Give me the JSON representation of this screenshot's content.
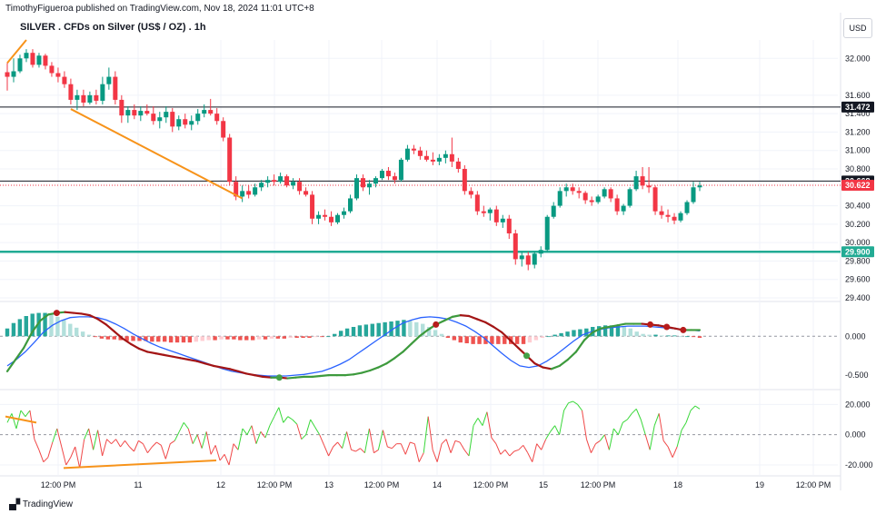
{
  "header": {
    "published": "TimothyFigueroa published on TradingView.com, Nov 18, 2024 11:01 UTC+8",
    "title": "SILVER . CFDs on Silver (US$ / OZ) . 1h",
    "currency": "USD",
    "brand": "TradingView"
  },
  "chart_data": [
    {
      "type": "candlestick",
      "title": "SILVER . CFDs on Silver (US$ / OZ) . 1h",
      "y_ticks": [
        "32.000",
        "31.600",
        "31.400",
        "31.200",
        "31.000",
        "30.800",
        "30.400",
        "30.200",
        "30.000",
        "29.800",
        "29.600",
        "29.400"
      ],
      "ylim": [
        29.4,
        32.2
      ],
      "price_labels": [
        {
          "value": 31.472,
          "text": "31.472",
          "color": "#131722"
        },
        {
          "value": 30.668,
          "text": "30.668",
          "color": "#131722"
        },
        {
          "value": 30.622,
          "text": "30.622",
          "color": "#f23645"
        },
        {
          "value": 29.9,
          "text": "29.900",
          "color": "#22ab94"
        }
      ],
      "horizontal_lines": [
        {
          "value": 31.472,
          "color": "#131722"
        },
        {
          "value": 30.668,
          "color": "#131722"
        },
        {
          "value": 29.9,
          "color": "#22ab94"
        }
      ],
      "trend_lines": [
        {
          "color": "#f7931a",
          "from": [
            0,
            31.95
          ],
          "to": [
            3,
            32.2
          ]
        },
        {
          "color": "#f7931a",
          "from": [
            10,
            31.45
          ],
          "to": [
            37,
            30.48
          ]
        }
      ],
      "ohlc": [
        [
          31.85,
          31.95,
          31.65,
          31.8
        ],
        [
          31.8,
          32.0,
          31.74,
          31.86
        ],
        [
          31.86,
          32.04,
          31.84,
          32.0
        ],
        [
          32.0,
          32.1,
          31.96,
          32.06
        ],
        [
          32.06,
          32.1,
          31.9,
          31.93
        ],
        [
          31.93,
          32.06,
          31.9,
          32.03
        ],
        [
          32.03,
          32.05,
          31.88,
          31.92
        ],
        [
          31.92,
          31.96,
          31.8,
          31.84
        ],
        [
          31.84,
          31.9,
          31.74,
          31.8
        ],
        [
          31.8,
          31.86,
          31.68,
          31.72
        ],
        [
          31.72,
          31.78,
          31.5,
          31.55
        ],
        [
          31.55,
          31.66,
          31.44,
          31.6
        ],
        [
          31.6,
          31.66,
          31.48,
          31.52
        ],
        [
          31.52,
          31.64,
          31.5,
          31.6
        ],
        [
          31.6,
          31.66,
          31.5,
          31.54
        ],
        [
          31.54,
          31.8,
          31.5,
          31.72
        ],
        [
          31.72,
          31.9,
          31.66,
          31.8
        ],
        [
          31.8,
          31.86,
          31.5,
          31.55
        ],
        [
          31.55,
          31.6,
          31.3,
          31.38
        ],
        [
          31.38,
          31.48,
          31.3,
          31.44
        ],
        [
          31.44,
          31.5,
          31.34,
          31.38
        ],
        [
          31.38,
          31.48,
          31.32,
          31.43
        ],
        [
          31.43,
          31.5,
          31.38,
          31.4
        ],
        [
          31.4,
          31.48,
          31.28,
          31.32
        ],
        [
          31.32,
          31.42,
          31.24,
          31.36
        ],
        [
          31.36,
          31.48,
          31.3,
          31.42
        ],
        [
          31.42,
          31.46,
          31.2,
          31.26
        ],
        [
          31.26,
          31.38,
          31.22,
          31.34
        ],
        [
          31.34,
          31.4,
          31.24,
          31.28
        ],
        [
          31.28,
          31.38,
          31.22,
          31.32
        ],
        [
          31.32,
          31.45,
          31.28,
          31.4
        ],
        [
          31.4,
          31.5,
          31.36,
          31.44
        ],
        [
          31.44,
          31.56,
          31.38,
          31.4
        ],
        [
          31.4,
          31.46,
          31.28,
          31.32
        ],
        [
          31.32,
          31.36,
          31.1,
          31.14
        ],
        [
          31.14,
          31.18,
          30.62,
          30.66
        ],
        [
          30.66,
          30.72,
          30.46,
          30.5
        ],
        [
          30.5,
          30.62,
          30.44,
          30.56
        ],
        [
          30.56,
          30.62,
          30.48,
          30.52
        ],
        [
          30.52,
          30.64,
          30.5,
          30.6
        ],
        [
          30.6,
          30.68,
          30.56,
          30.65
        ],
        [
          30.65,
          30.72,
          30.6,
          30.68
        ],
        [
          30.68,
          30.74,
          30.62,
          30.66
        ],
        [
          30.66,
          30.76,
          30.64,
          30.72
        ],
        [
          30.72,
          30.74,
          30.6,
          30.62
        ],
        [
          30.62,
          30.7,
          30.58,
          30.66
        ],
        [
          30.66,
          30.7,
          30.52,
          30.56
        ],
        [
          30.56,
          30.6,
          30.5,
          30.52
        ],
        [
          30.52,
          30.56,
          30.2,
          30.26
        ],
        [
          30.26,
          30.34,
          30.2,
          30.3
        ],
        [
          30.3,
          30.36,
          30.24,
          30.28
        ],
        [
          30.28,
          30.34,
          30.18,
          30.22
        ],
        [
          30.22,
          30.32,
          30.2,
          30.3
        ],
        [
          30.3,
          30.38,
          30.26,
          30.34
        ],
        [
          30.34,
          30.52,
          30.32,
          30.48
        ],
        [
          30.48,
          30.74,
          30.46,
          30.7
        ],
        [
          30.7,
          30.74,
          30.56,
          30.6
        ],
        [
          30.6,
          30.68,
          30.52,
          30.64
        ],
        [
          30.64,
          30.72,
          30.6,
          30.7
        ],
        [
          30.7,
          30.8,
          30.68,
          30.78
        ],
        [
          30.78,
          30.82,
          30.68,
          30.72
        ],
        [
          30.72,
          30.76,
          30.64,
          30.68
        ],
        [
          30.68,
          30.92,
          30.66,
          30.9
        ],
        [
          30.9,
          31.06,
          30.88,
          31.02
        ],
        [
          31.02,
          31.06,
          30.96,
          31.0
        ],
        [
          31.0,
          31.04,
          30.9,
          30.94
        ],
        [
          30.94,
          31.0,
          30.88,
          30.9
        ],
        [
          30.9,
          30.98,
          30.84,
          30.88
        ],
        [
          30.88,
          30.96,
          30.84,
          30.92
        ],
        [
          30.92,
          31.0,
          30.86,
          30.96
        ],
        [
          30.96,
          31.14,
          30.82,
          30.88
        ],
        [
          30.88,
          30.92,
          30.76,
          30.8
        ],
        [
          30.8,
          30.84,
          30.52,
          30.56
        ],
        [
          30.56,
          30.6,
          30.48,
          30.52
        ],
        [
          30.52,
          30.56,
          30.3,
          30.34
        ],
        [
          30.34,
          30.4,
          30.28,
          30.32
        ],
        [
          30.32,
          30.38,
          30.24,
          30.36
        ],
        [
          30.36,
          30.4,
          30.18,
          30.22
        ],
        [
          30.22,
          30.3,
          30.16,
          30.26
        ],
        [
          30.26,
          30.3,
          30.04,
          30.1
        ],
        [
          30.1,
          30.14,
          29.76,
          29.82
        ],
        [
          29.82,
          29.9,
          29.74,
          29.86
        ],
        [
          29.86,
          29.9,
          29.7,
          29.76
        ],
        [
          29.76,
          29.9,
          29.72,
          29.88
        ],
        [
          29.88,
          29.96,
          29.84,
          29.92
        ],
        [
          29.92,
          30.3,
          29.9,
          30.28
        ],
        [
          30.28,
          30.44,
          30.26,
          30.4
        ],
        [
          30.4,
          30.6,
          30.38,
          30.56
        ],
        [
          30.56,
          30.64,
          30.5,
          30.6
        ],
        [
          30.6,
          30.64,
          30.52,
          30.56
        ],
        [
          30.56,
          30.6,
          30.48,
          30.54
        ],
        [
          30.54,
          30.56,
          30.42,
          30.46
        ],
        [
          30.46,
          30.5,
          30.4,
          30.44
        ],
        [
          30.44,
          30.52,
          30.42,
          30.5
        ],
        [
          30.5,
          30.6,
          30.48,
          30.58
        ],
        [
          30.58,
          30.6,
          30.44,
          30.48
        ],
        [
          30.48,
          30.52,
          30.3,
          30.34
        ],
        [
          30.34,
          30.42,
          30.3,
          30.4
        ],
        [
          30.4,
          30.6,
          30.38,
          30.58
        ],
        [
          30.58,
          30.78,
          30.56,
          30.72
        ],
        [
          30.72,
          30.82,
          30.58,
          30.62
        ],
        [
          30.62,
          30.82,
          30.54,
          30.6
        ],
        [
          30.6,
          30.62,
          30.3,
          30.34
        ],
        [
          30.34,
          30.4,
          30.26,
          30.3
        ],
        [
          30.3,
          30.36,
          30.22,
          30.28
        ],
        [
          30.28,
          30.32,
          30.2,
          30.24
        ],
        [
          30.24,
          30.34,
          30.22,
          30.32
        ],
        [
          30.32,
          30.46,
          30.3,
          30.44
        ],
        [
          30.44,
          30.66,
          30.42,
          30.6
        ],
        [
          30.6,
          30.66,
          30.56,
          30.62
        ]
      ]
    },
    {
      "type": "histogram+line",
      "y_ticks": [
        "0.000",
        "-0.500"
      ],
      "ylim": [
        -0.65,
        0.4
      ],
      "histogram": [
        0.1,
        0.17,
        0.22,
        0.26,
        0.29,
        0.3,
        0.3,
        0.28,
        0.25,
        0.21,
        0.16,
        0.11,
        0.06,
        0.02,
        -0.01,
        -0.03,
        -0.04,
        -0.04,
        -0.05,
        -0.06,
        -0.06,
        -0.06,
        -0.06,
        -0.07,
        -0.07,
        -0.07,
        -0.08,
        -0.08,
        -0.08,
        -0.08,
        -0.07,
        -0.06,
        -0.05,
        -0.05,
        -0.04,
        -0.04,
        -0.04,
        -0.05,
        -0.05,
        -0.05,
        -0.04,
        -0.04,
        -0.03,
        -0.03,
        -0.03,
        -0.02,
        -0.02,
        -0.02,
        -0.02,
        -0.01,
        -0.01,
        0.0,
        0.03,
        0.07,
        0.1,
        0.12,
        0.14,
        0.15,
        0.16,
        0.17,
        0.18,
        0.19,
        0.2,
        0.21,
        0.2,
        0.18,
        0.16,
        0.12,
        0.08,
        0.03,
        -0.02,
        -0.05,
        -0.08,
        -0.09,
        -0.1,
        -0.1,
        -0.1,
        -0.1,
        -0.1,
        -0.1,
        -0.1,
        -0.1,
        -0.1,
        -0.08,
        -0.05,
        -0.02,
        0.0,
        0.02,
        0.04,
        0.06,
        0.08,
        0.09,
        0.1,
        0.12,
        0.13,
        0.14,
        0.14,
        0.14,
        0.13,
        0.1,
        0.06,
        0.03,
        0.02,
        0.02,
        0.01,
        0.01,
        0.01,
        0.0,
        0.0,
        -0.01,
        -0.02
      ],
      "series": [
        {
          "color": "#3d9a3d",
          "values": [
            -0.45,
            -0.3,
            -0.15,
            0.05,
            0.2,
            0.28,
            0.3,
            0.31,
            0.3,
            0.29,
            0.27,
            0.22,
            0.15,
            0.06,
            -0.03,
            -0.1,
            -0.16,
            -0.2,
            -0.22,
            -0.24,
            -0.26,
            -0.28,
            -0.3,
            -0.32,
            -0.35,
            -0.38,
            -0.4,
            -0.42,
            -0.45,
            -0.48,
            -0.5,
            -0.52,
            -0.53,
            -0.53,
            -0.54,
            -0.53,
            -0.52,
            -0.52,
            -0.51,
            -0.5,
            -0.5,
            -0.5,
            -0.49,
            -0.47,
            -0.44,
            -0.4,
            -0.35,
            -0.28,
            -0.2,
            -0.1,
            0.0,
            0.08,
            0.15,
            0.2,
            0.25,
            0.27,
            0.26,
            0.22,
            0.18,
            0.12,
            0.05,
            -0.05,
            -0.15,
            -0.25,
            -0.35,
            -0.4,
            -0.42,
            -0.38,
            -0.3,
            -0.2,
            -0.05,
            0.05,
            0.1,
            0.12,
            0.14,
            0.16,
            0.16,
            0.16,
            0.15,
            0.14,
            0.12,
            0.1,
            0.08,
            0.08,
            0.08
          ]
        },
        {
          "color": "#2962ff",
          "values": [
            -0.38,
            -0.3,
            -0.2,
            -0.08,
            0.05,
            0.14,
            0.2,
            0.24,
            0.25,
            0.25,
            0.24,
            0.21,
            0.16,
            0.1,
            0.03,
            -0.03,
            -0.09,
            -0.14,
            -0.18,
            -0.22,
            -0.26,
            -0.3,
            -0.34,
            -0.38,
            -0.42,
            -0.45,
            -0.47,
            -0.49,
            -0.5,
            -0.51,
            -0.51,
            -0.51,
            -0.5,
            -0.49,
            -0.47,
            -0.45,
            -0.41,
            -0.36,
            -0.3,
            -0.22,
            -0.14,
            -0.06,
            0.02,
            0.1,
            0.17,
            0.21,
            0.24,
            0.25,
            0.24,
            0.22,
            0.18,
            0.13,
            0.06,
            -0.02,
            -0.12,
            -0.22,
            -0.31,
            -0.38,
            -0.4,
            -0.38,
            -0.32,
            -0.24,
            -0.15,
            -0.06,
            0.02,
            0.06,
            0.09,
            0.11,
            0.12,
            0.13,
            0.13,
            0.13,
            0.12,
            0.11,
            0.1,
            0.09,
            0.08,
            0.07
          ]
        }
      ],
      "dots": [
        {
          "color": "#b71c1c"
        },
        {
          "color": "#43a047"
        },
        {
          "color": "#b71c1c"
        },
        {
          "color": "#43a047"
        },
        {
          "color": "#b71c1c"
        },
        {
          "color": "#b71c1c"
        },
        {
          "color": "#b71c1c"
        }
      ]
    },
    {
      "type": "line",
      "y_ticks": [
        "20.000",
        "0.000",
        "-20.000"
      ],
      "ylim": [
        -26,
        28
      ],
      "series": [
        {
          "up_color": "#38d738",
          "down_color": "#f04848",
          "values": [
            8,
            14,
            4,
            16,
            12,
            16,
            -3,
            -10,
            -18,
            -15,
            -5,
            4,
            -8,
            -20,
            -15,
            -8,
            -22,
            -3,
            4,
            -10,
            3,
            -14,
            -3,
            -6,
            -3,
            -8,
            -4,
            -8,
            -11,
            -4,
            -6,
            -12,
            -8,
            -5,
            -7,
            -16,
            -6,
            -4,
            2,
            8,
            4,
            -6,
            0,
            -9,
            2,
            -13,
            -7,
            -17,
            -13,
            -20,
            -6,
            -10,
            4,
            0,
            6,
            -6,
            2,
            -2,
            6,
            12,
            18,
            8,
            12,
            10,
            7,
            -3,
            0,
            10,
            5,
            0,
            -7,
            -14,
            -8,
            -5,
            -9,
            2,
            -10,
            -11,
            -9,
            -12,
            4,
            -12,
            -10,
            3,
            -8,
            -9,
            -6,
            -6,
            -13,
            -5,
            -6,
            -18,
            -12,
            12,
            -10,
            -18,
            -6,
            -3,
            -12,
            -4,
            -5,
            -10,
            -14,
            6,
            11,
            6,
            15,
            -2,
            -6,
            -13,
            -10,
            -14,
            -11,
            -10,
            -7,
            -12,
            -18,
            -6,
            -10,
            -3,
            2,
            6,
            0,
            16,
            21,
            22,
            20,
            16,
            -3,
            -12,
            -6,
            -4,
            0,
            -10,
            4,
            0,
            8,
            10,
            14,
            17,
            10,
            0,
            -10,
            6,
            14,
            -4,
            -8,
            -15,
            -8,
            3,
            8,
            16,
            19,
            17
          ]
        }
      ],
      "trend_lines": [
        {
          "color": "#f7931a"
        },
        {
          "color": "#f7931a"
        }
      ]
    }
  ],
  "x_labels": [
    "12:00 PM",
    "11",
    "12",
    "12:00 PM",
    "13",
    "12:00 PM",
    "14",
    "12:00 PM",
    "15",
    "12:00 PM",
    "18",
    "19",
    "12:00 PM"
  ]
}
